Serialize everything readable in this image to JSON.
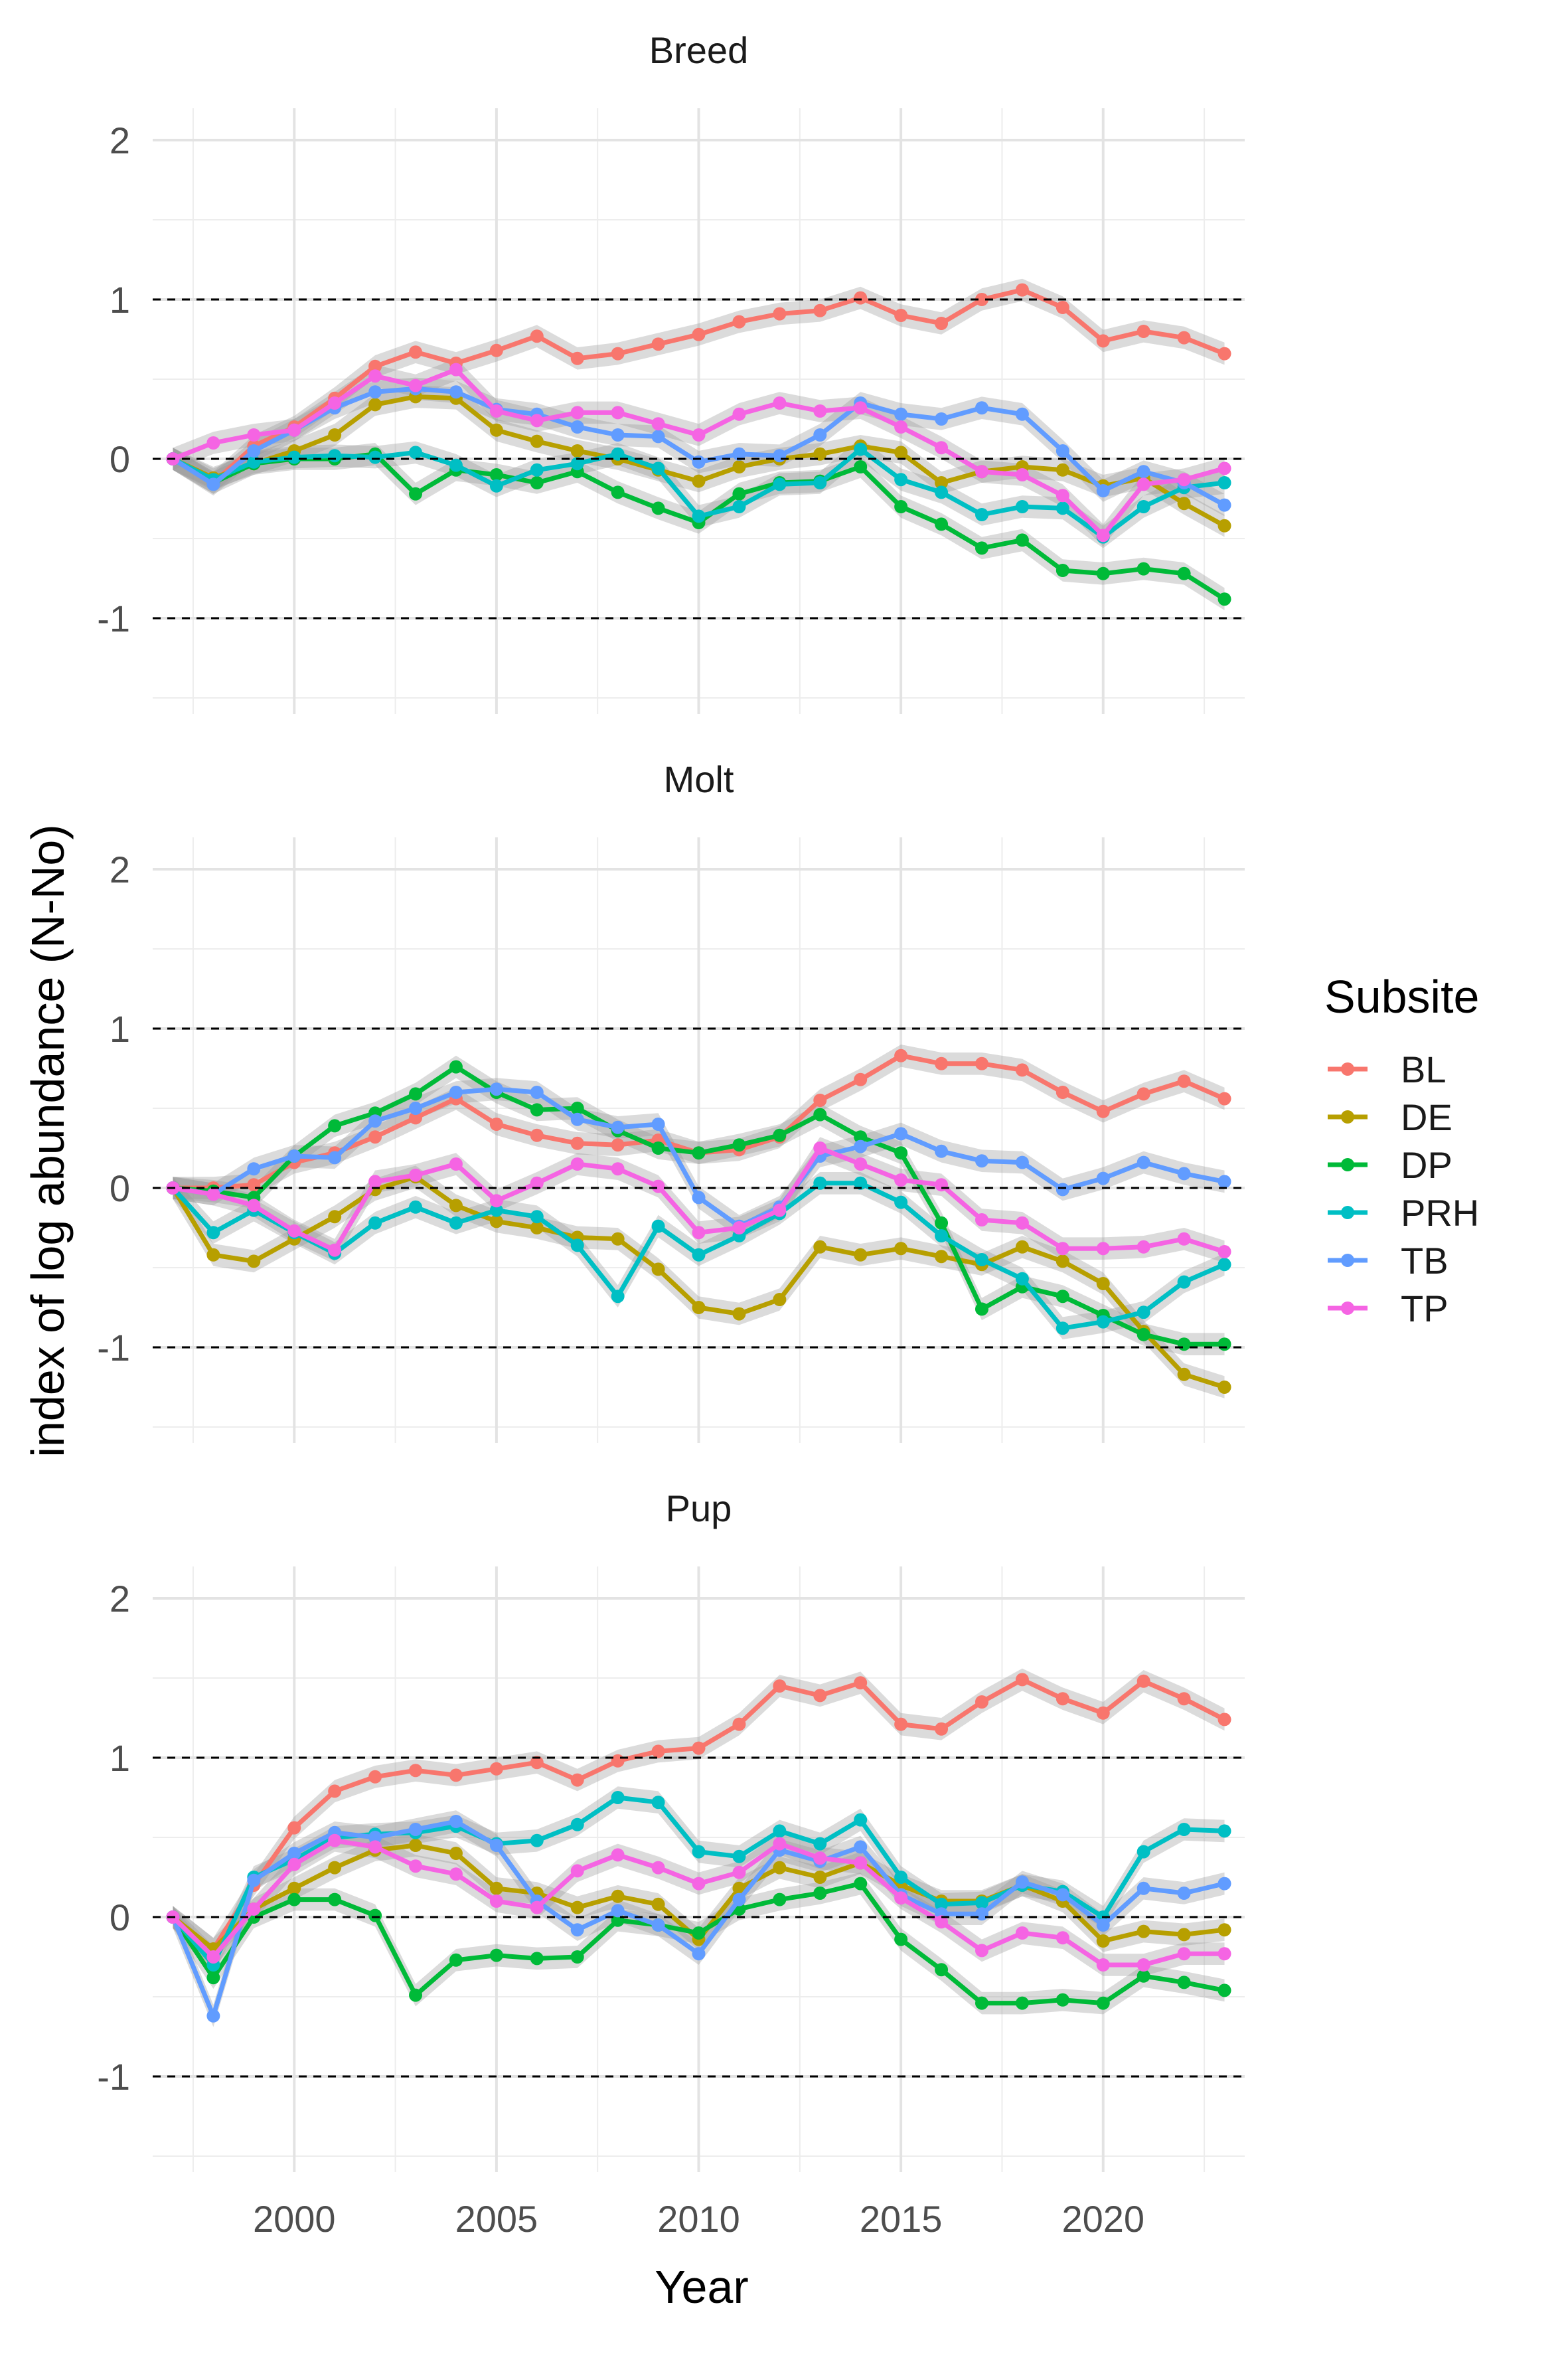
{
  "chart_data": {
    "type": "line",
    "xlabel": "Year",
    "ylabel": "index of log abundance (N-No)",
    "xlim": [
      1996.5,
      2023.5
    ],
    "ylim": [
      -1.6,
      2.2
    ],
    "x_ticks": [
      2000,
      2005,
      2010,
      2015,
      2020
    ],
    "y_ticks": [
      -1,
      0,
      1,
      2
    ],
    "y_tick_labels": [
      "-1",
      "0",
      "1",
      "2"
    ],
    "reference_lines": [
      -1,
      0,
      1
    ],
    "ribbon_halfwidth": 0.07,
    "grid": true,
    "legend": {
      "title": "Subsite",
      "position": "right",
      "entries": [
        "BL",
        "DE",
        "DP",
        "PRH",
        "TB",
        "TP"
      ]
    },
    "colors": {
      "BL": "#F8766D",
      "DE": "#B79F00",
      "DP": "#00BA38",
      "PRH": "#00BFC4",
      "TB": "#619CFF",
      "TP": "#F564E3"
    },
    "x": [
      1997,
      1998,
      1999,
      2000,
      2001,
      2002,
      2003,
      2004,
      2005,
      2006,
      2007,
      2008,
      2009,
      2010,
      2011,
      2012,
      2013,
      2014,
      2015,
      2016,
      2017,
      2018,
      2019,
      2020,
      2021,
      2022,
      2023
    ],
    "panels": [
      {
        "title": "Breed",
        "series": [
          {
            "name": "BL",
            "values": [
              0,
              -0.15,
              0.08,
              0.2,
              0.38,
              0.58,
              0.67,
              0.6,
              0.68,
              0.77,
              0.63,
              0.66,
              0.72,
              0.78,
              0.86,
              0.91,
              0.93,
              1.01,
              0.9,
              0.85,
              1.0,
              1.06,
              0.95,
              0.74,
              0.8,
              0.76,
              0.66
            ]
          },
          {
            "name": "DE",
            "values": [
              0,
              -0.12,
              -0.03,
              0.05,
              0.15,
              0.34,
              0.39,
              0.38,
              0.18,
              0.11,
              0.05,
              0.0,
              -0.07,
              -0.14,
              -0.05,
              0.0,
              0.03,
              0.08,
              0.04,
              -0.15,
              -0.08,
              -0.05,
              -0.07,
              -0.17,
              -0.12,
              -0.28,
              -0.42
            ]
          },
          {
            "name": "DP",
            "values": [
              0,
              -0.15,
              -0.03,
              0.0,
              0.0,
              0.03,
              -0.22,
              -0.07,
              -0.1,
              -0.15,
              -0.08,
              -0.21,
              -0.31,
              -0.4,
              -0.22,
              -0.15,
              -0.14,
              -0.05,
              -0.3,
              -0.41,
              -0.56,
              -0.51,
              -0.7,
              -0.72,
              -0.69,
              -0.72,
              -0.88
            ]
          },
          {
            "name": "PRH",
            "values": [
              0,
              -0.13,
              -0.02,
              0.01,
              0.02,
              0.01,
              0.04,
              -0.04,
              -0.17,
              -0.07,
              -0.03,
              0.03,
              -0.06,
              -0.36,
              -0.3,
              -0.16,
              -0.15,
              0.06,
              -0.13,
              -0.21,
              -0.35,
              -0.3,
              -0.31,
              -0.49,
              -0.3,
              -0.18,
              -0.15
            ]
          },
          {
            "name": "TB",
            "values": [
              0,
              -0.16,
              0.05,
              0.18,
              0.32,
              0.42,
              0.44,
              0.42,
              0.31,
              0.28,
              0.2,
              0.15,
              0.14,
              -0.02,
              0.03,
              0.02,
              0.15,
              0.35,
              0.28,
              0.25,
              0.32,
              0.28,
              0.05,
              -0.2,
              -0.08,
              -0.15,
              -0.29
            ]
          },
          {
            "name": "TP",
            "values": [
              0,
              0.1,
              0.15,
              0.18,
              0.35,
              0.52,
              0.46,
              0.56,
              0.3,
              0.24,
              0.29,
              0.29,
              0.22,
              0.15,
              0.28,
              0.35,
              0.3,
              0.32,
              0.2,
              0.07,
              -0.08,
              -0.1,
              -0.23,
              -0.48,
              -0.16,
              -0.13,
              -0.06
            ]
          }
        ]
      },
      {
        "title": "Molt",
        "series": [
          {
            "name": "BL",
            "values": [
              0,
              0.0,
              0.02,
              0.16,
              0.22,
              0.32,
              0.44,
              0.56,
              0.4,
              0.33,
              0.28,
              0.27,
              0.3,
              0.22,
              0.24,
              0.32,
              0.55,
              0.68,
              0.83,
              0.78,
              0.78,
              0.74,
              0.6,
              0.48,
              0.59,
              0.67,
              0.56
            ]
          },
          {
            "name": "DE",
            "values": [
              0,
              -0.42,
              -0.46,
              -0.32,
              -0.18,
              -0.01,
              0.07,
              -0.11,
              -0.21,
              -0.25,
              -0.31,
              -0.32,
              -0.51,
              -0.75,
              -0.79,
              -0.7,
              -0.37,
              -0.42,
              -0.38,
              -0.43,
              -0.48,
              -0.37,
              -0.46,
              -0.6,
              -0.9,
              -1.17,
              -1.25
            ]
          },
          {
            "name": "DP",
            "values": [
              0,
              -0.02,
              -0.06,
              0.2,
              0.39,
              0.47,
              0.59,
              0.76,
              0.6,
              0.49,
              0.5,
              0.36,
              0.25,
              0.22,
              0.27,
              0.33,
              0.46,
              0.32,
              0.22,
              -0.22,
              -0.76,
              -0.62,
              -0.68,
              -0.8,
              -0.92,
              -0.98,
              -0.98
            ]
          },
          {
            "name": "PRH",
            "values": [
              0,
              -0.28,
              -0.14,
              -0.28,
              -0.41,
              -0.22,
              -0.12,
              -0.22,
              -0.14,
              -0.18,
              -0.36,
              -0.68,
              -0.24,
              -0.42,
              -0.3,
              -0.16,
              0.03,
              0.03,
              -0.09,
              -0.3,
              -0.45,
              -0.57,
              -0.88,
              -0.84,
              -0.78,
              -0.59,
              -0.48
            ]
          },
          {
            "name": "TB",
            "values": [
              0,
              -0.04,
              0.12,
              0.2,
              0.19,
              0.42,
              0.5,
              0.6,
              0.62,
              0.6,
              0.43,
              0.38,
              0.4,
              -0.06,
              -0.24,
              -0.12,
              0.2,
              0.26,
              0.34,
              0.23,
              0.17,
              0.16,
              -0.01,
              0.06,
              0.16,
              0.09,
              0.04
            ]
          },
          {
            "name": "TP",
            "values": [
              0,
              -0.04,
              -0.11,
              -0.27,
              -0.39,
              0.04,
              0.08,
              0.15,
              -0.08,
              0.03,
              0.15,
              0.12,
              0.01,
              -0.28,
              -0.25,
              -0.14,
              0.25,
              0.15,
              0.05,
              0.02,
              -0.2,
              -0.22,
              -0.38,
              -0.38,
              -0.37,
              -0.32,
              -0.4
            ]
          }
        ]
      },
      {
        "title": "Pup",
        "series": [
          {
            "name": "BL",
            "values": [
              0,
              -0.2,
              0.2,
              0.56,
              0.79,
              0.88,
              0.92,
              0.89,
              0.93,
              0.97,
              0.86,
              0.98,
              1.04,
              1.06,
              1.21,
              1.45,
              1.39,
              1.47,
              1.21,
              1.18,
              1.35,
              1.49,
              1.37,
              1.28,
              1.48,
              1.37,
              1.24
            ]
          },
          {
            "name": "DE",
            "values": [
              0,
              -0.2,
              0.05,
              0.18,
              0.31,
              0.42,
              0.45,
              0.4,
              0.18,
              0.15,
              0.06,
              0.13,
              0.08,
              -0.14,
              0.18,
              0.31,
              0.25,
              0.34,
              0.2,
              0.1,
              0.1,
              0.2,
              0.1,
              -0.15,
              -0.09,
              -0.11,
              -0.08
            ]
          },
          {
            "name": "DP",
            "values": [
              0,
              -0.38,
              0.0,
              0.11,
              0.11,
              0.01,
              -0.49,
              -0.27,
              -0.24,
              -0.26,
              -0.25,
              -0.02,
              -0.05,
              -0.1,
              0.05,
              0.11,
              0.15,
              0.21,
              -0.14,
              -0.33,
              -0.54,
              -0.54,
              -0.52,
              -0.54,
              -0.37,
              -0.41,
              -0.46
            ]
          },
          {
            "name": "PRH",
            "values": [
              0,
              -0.3,
              0.25,
              0.36,
              0.5,
              0.52,
              0.53,
              0.57,
              0.46,
              0.48,
              0.58,
              0.75,
              0.72,
              0.41,
              0.38,
              0.54,
              0.46,
              0.61,
              0.25,
              0.08,
              0.09,
              0.2,
              0.16,
              0.0,
              0.41,
              0.55,
              0.54
            ]
          },
          {
            "name": "TB",
            "values": [
              0,
              -0.62,
              0.23,
              0.4,
              0.53,
              0.5,
              0.55,
              0.6,
              0.45,
              0.1,
              -0.08,
              0.04,
              -0.05,
              -0.23,
              0.11,
              0.42,
              0.35,
              0.44,
              0.14,
              0.02,
              0.02,
              0.22,
              0.14,
              -0.05,
              0.18,
              0.15,
              0.21
            ]
          },
          {
            "name": "TP",
            "values": [
              0,
              -0.25,
              0.05,
              0.33,
              0.48,
              0.44,
              0.32,
              0.27,
              0.1,
              0.06,
              0.29,
              0.39,
              0.31,
              0.21,
              0.28,
              0.46,
              0.37,
              0.34,
              0.12,
              -0.03,
              -0.21,
              -0.1,
              -0.13,
              -0.3,
              -0.3,
              -0.23,
              -0.23
            ]
          }
        ]
      }
    ]
  }
}
